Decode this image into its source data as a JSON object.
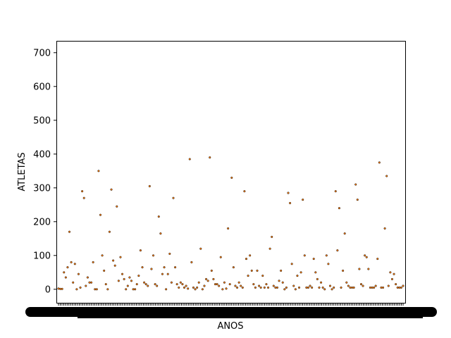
{
  "chart_data": {
    "type": "scatter",
    "xlabel": "ANOS",
    "ylabel": "ATLETAS",
    "ylim": [
      -40,
      735
    ],
    "yticks": [
      0,
      100,
      200,
      300,
      400,
      500,
      600,
      700
    ],
    "x_tick_labels_legible": false,
    "x_tick_count": 200,
    "grid": false,
    "legend": "none",
    "marker_color": "#ff7f0e",
    "marker_edge_color": "#000000",
    "values": [
      2,
      1,
      1,
      50,
      35,
      65,
      170,
      80,
      20,
      75,
      0,
      45,
      5,
      290,
      270,
      10,
      35,
      20,
      20,
      80,
      0,
      0,
      350,
      220,
      100,
      55,
      15,
      0,
      170,
      295,
      85,
      70,
      245,
      25,
      95,
      45,
      30,
      0,
      10,
      35,
      25,
      0,
      0,
      15,
      40,
      115,
      65,
      20,
      15,
      10,
      305,
      60,
      100,
      15,
      10,
      215,
      165,
      45,
      65,
      0,
      45,
      105,
      20,
      270,
      65,
      15,
      5,
      20,
      15,
      5,
      10,
      2,
      385,
      80,
      5,
      0,
      5,
      20,
      120,
      0,
      10,
      30,
      25,
      390,
      55,
      30,
      15,
      15,
      10,
      95,
      0,
      20,
      2,
      180,
      15,
      330,
      65,
      10,
      5,
      20,
      10,
      5,
      290,
      90,
      40,
      100,
      55,
      15,
      5,
      55,
      10,
      5,
      40,
      5,
      15,
      5,
      120,
      155,
      10,
      5,
      5,
      25,
      55,
      20,
      0,
      5,
      285,
      255,
      75,
      10,
      0,
      40,
      5,
      50,
      265,
      100,
      5,
      5,
      10,
      5,
      90,
      50,
      30,
      5,
      20,
      5,
      0,
      100,
      75,
      10,
      0,
      5,
      290,
      115,
      240,
      5,
      55,
      165,
      20,
      10,
      5,
      5,
      5,
      310,
      265,
      60,
      15,
      10,
      100,
      95,
      60,
      5,
      5,
      5,
      10,
      90,
      375,
      5,
      5,
      180,
      335,
      10,
      50,
      30,
      45,
      15,
      5,
      5,
      5,
      10
    ]
  }
}
